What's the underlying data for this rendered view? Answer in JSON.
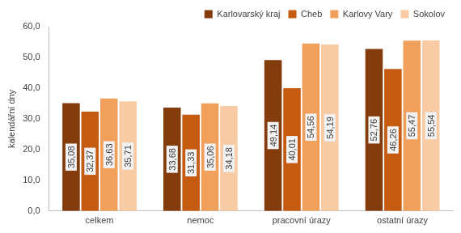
{
  "chart_data": {
    "type": "bar",
    "y_label": "kalendářní dny",
    "categories": [
      "celkem",
      "nemoc",
      "pracovní úrazy",
      "ostatní úrazy"
    ],
    "series": [
      {
        "name": "Karlovarský kraj",
        "color": "#843c0c",
        "values": [
          35.08,
          33.68,
          49.14,
          52.76
        ],
        "value_labels": [
          "35,08",
          "33,68",
          "49,14",
          "52,76"
        ]
      },
      {
        "name": "Cheb",
        "color": "#c55a11",
        "values": [
          32.37,
          31.33,
          40.01,
          46.26
        ],
        "value_labels": [
          "32,37",
          "31,33",
          "40,01",
          "46,26"
        ]
      },
      {
        "name": "Karlovy Vary",
        "color": "#f0a05a",
        "values": [
          36.63,
          35.06,
          54.56,
          55.47
        ],
        "value_labels": [
          "36,63",
          "35,06",
          "54,56",
          "55,47"
        ]
      },
      {
        "name": "Sokolov",
        "color": "#f8cba4",
        "values": [
          35.71,
          34.18,
          54.19,
          55.54
        ],
        "value_labels": [
          "35,71",
          "34,18",
          "54,19",
          "55,54"
        ]
      }
    ],
    "ylim": [
      0,
      60
    ],
    "yticks": [
      {
        "value": 0,
        "label": "0,0"
      },
      {
        "value": 10,
        "label": "10,0"
      },
      {
        "value": 20,
        "label": "20,0"
      },
      {
        "value": 30,
        "label": "30,0"
      },
      {
        "value": 40,
        "label": "40,0"
      },
      {
        "value": 50,
        "label": "50,0"
      },
      {
        "value": 60,
        "label": "60,0"
      }
    ],
    "grid": false,
    "legend": "top",
    "data_labels": true
  }
}
